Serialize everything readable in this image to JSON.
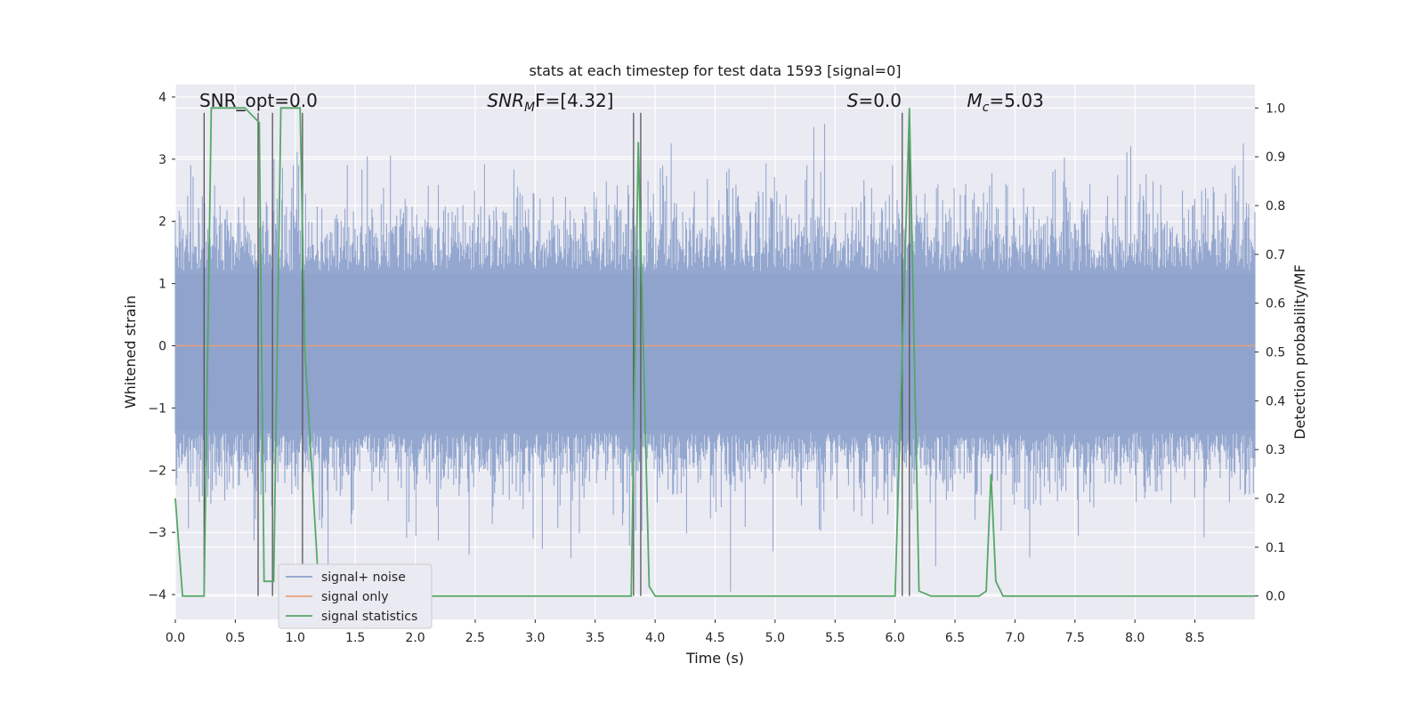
{
  "chart_data": {
    "type": "line",
    "title": "stats at each timestep for test data 1593 [signal=0]",
    "xlabel": "Time (s)",
    "ylabel_left": "Whitened strain",
    "ylabel_right": "Detection probability/MF",
    "xlim": [
      0.0,
      9.0
    ],
    "ylim_left": [
      -4.4,
      4.2
    ],
    "ylim_right": [
      -0.048,
      1.048
    ],
    "x_ticks": [
      "0.0",
      "0.5",
      "1.0",
      "1.5",
      "2.0",
      "2.5",
      "3.0",
      "3.5",
      "4.0",
      "4.5",
      "5.0",
      "5.5",
      "6.0",
      "6.5",
      "7.0",
      "7.5",
      "8.0",
      "8.5"
    ],
    "x_tick_values": [
      0.0,
      0.5,
      1.0,
      1.5,
      2.0,
      2.5,
      3.0,
      3.5,
      4.0,
      4.5,
      5.0,
      5.5,
      6.0,
      6.5,
      7.0,
      7.5,
      8.0,
      8.5
    ],
    "y_left_ticks": [
      "4",
      "3",
      "2",
      "1",
      "0",
      "−1",
      "−2",
      "−3",
      "−4"
    ],
    "y_left_tick_values": [
      4,
      3,
      2,
      1,
      0,
      -1,
      -2,
      -3,
      -4
    ],
    "y_right_ticks": [
      "1.0",
      "0.9",
      "0.8",
      "0.7",
      "0.6",
      "0.5",
      "0.4",
      "0.3",
      "0.2",
      "0.1",
      "0.0"
    ],
    "y_right_tick_values": [
      1.0,
      0.9,
      0.8,
      0.7,
      0.6,
      0.5,
      0.4,
      0.3,
      0.2,
      0.1,
      0.0
    ],
    "annotations": [
      {
        "name": "snr-opt",
        "text": "SNR_opt=0.0",
        "x": 0.2
      },
      {
        "name": "snr-mf",
        "text_main": "SNR",
        "text_sub": "M",
        "text_rest": "F=[4.32]",
        "x": 2.6
      },
      {
        "name": "s-value",
        "text_main": "S",
        "text_rest": "=0.0",
        "x": 5.6
      },
      {
        "name": "mc-value",
        "text_main": "M",
        "text_sub": "c",
        "text_rest": "=5.03",
        "x": 6.6
      }
    ],
    "series": [
      {
        "name": "signal+ noise",
        "axis": "left",
        "color": "#8fa3cc",
        "description": "dense whitened strain noise, roughly -2 to 2.5 with spikes to about 3.8 and -4"
      },
      {
        "name": "signal only",
        "axis": "left",
        "color": "#e8a17c",
        "x": [
          0.0,
          9.0
        ],
        "y": [
          0.0,
          0.0
        ]
      },
      {
        "name": "signal statistics",
        "axis": "right",
        "color": "#55a868",
        "x": [
          0.0,
          0.06,
          0.1,
          0.24,
          0.3,
          0.58,
          0.7,
          0.74,
          0.82,
          0.88,
          1.04,
          1.08,
          1.2,
          1.3,
          3.75,
          3.8,
          3.86,
          3.95,
          4.0,
          6.0,
          6.12,
          6.2,
          6.3,
          6.5,
          6.7,
          6.76,
          6.8,
          6.84,
          6.9,
          7.0,
          9.0
        ],
        "y": [
          0.2,
          0.0,
          0.0,
          0.0,
          1.0,
          1.0,
          0.97,
          0.03,
          0.03,
          1.0,
          1.0,
          0.5,
          0.0,
          0.0,
          0.0,
          0.0,
          0.93,
          0.02,
          0.0,
          0.0,
          1.0,
          0.01,
          0.0,
          0.0,
          0.0,
          0.01,
          0.25,
          0.03,
          0.0,
          0.0,
          0.0
        ]
      }
    ],
    "vlines": [
      {
        "x": 0.24,
        "y_top": 0.99,
        "y_bottom": 0.0
      },
      {
        "x": 0.69,
        "y_top": 0.99,
        "y_bottom": 0.0
      },
      {
        "x": 0.81,
        "y_top": 0.99,
        "y_bottom": 0.0
      },
      {
        "x": 1.06,
        "y_top": 0.99,
        "y_bottom": 0.0
      },
      {
        "x": 3.82,
        "y_top": 0.99,
        "y_bottom": 0.0
      },
      {
        "x": 3.88,
        "y_top": 0.99,
        "y_bottom": 0.0
      },
      {
        "x": 6.06,
        "y_top": 0.99,
        "y_bottom": 0.0
      },
      {
        "x": 6.12,
        "y_top": 0.99,
        "y_bottom": 0.0
      }
    ],
    "legend": {
      "placement": "lower-left",
      "entries": [
        {
          "label": "signal+ noise",
          "color": "#8fa3cc"
        },
        {
          "label": "signal only",
          "color": "#e8a17c"
        },
        {
          "label": "signal statistics",
          "color": "#55a868"
        }
      ]
    },
    "colors": {
      "plot_background": "#eaeaf2",
      "grid": "#ffffff",
      "vline": "#555555"
    },
    "grid": true
  }
}
